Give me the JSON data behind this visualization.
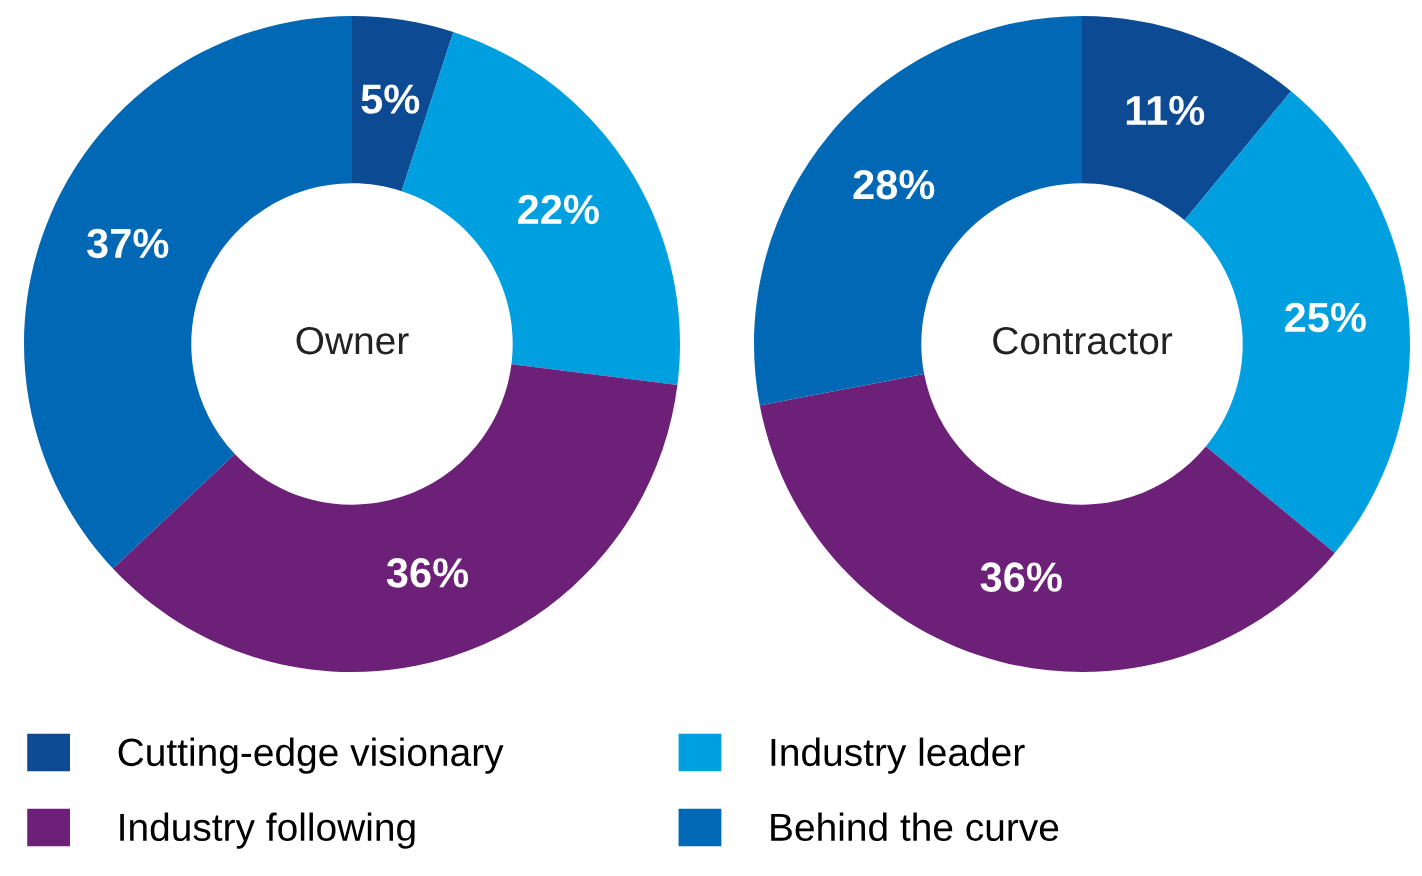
{
  "chart_data": [
    {
      "type": "donut",
      "title": "Owner",
      "categories": [
        "Cutting-edge visionary",
        "Industry leader",
        "Industry following",
        "Behind the curve"
      ],
      "values": [
        5,
        22,
        36,
        37
      ],
      "colors": [
        "#0c4b93",
        "#009fdf",
        "#6d2077",
        "#0068b5"
      ],
      "value_labels": [
        "5%",
        "22%",
        "36%",
        "37%"
      ],
      "legend": "bottom"
    },
    {
      "type": "donut",
      "title": "Contractor",
      "categories": [
        null,
        null,
        null,
        null
      ],
      "values": [
        11,
        25,
        36,
        28
      ],
      "colors": [
        "#0c4b93",
        "#009fdf",
        "#6d2077",
        "#0068b5"
      ],
      "value_labels": [
        "11%",
        "25%",
        "36%",
        "28%"
      ]
    }
  ]
}
